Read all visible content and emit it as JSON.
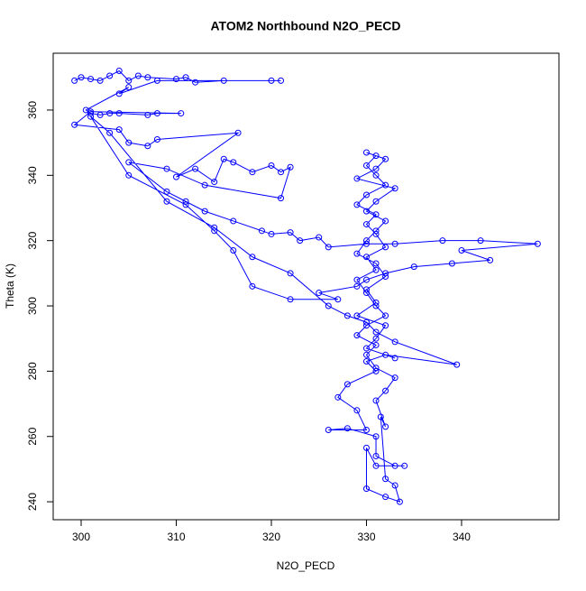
{
  "chart_data": {
    "type": "scatter",
    "title": "ATOM2 Northbound N2O_PECD",
    "x_label": "N2O_PECD",
    "y_label": "Theta (K)",
    "color": "#0000ff",
    "xlim": [
      297.06,
      350.24
    ],
    "ylim": [
      234.5,
      377.4
    ],
    "xticks": [
      300,
      310,
      320,
      330,
      340
    ],
    "yticks": [
      240,
      260,
      280,
      300,
      320,
      340,
      360
    ],
    "x": [
      299.3,
      300,
      301,
      302,
      303,
      304,
      305,
      306,
      307,
      310,
      311,
      312,
      315,
      320,
      321,
      308,
      304,
      305,
      300.5,
      301,
      302,
      303,
      304,
      307,
      308,
      310.5,
      301,
      299.3,
      304,
      305,
      307,
      308,
      316.5,
      310,
      312,
      314,
      315,
      316,
      318,
      320,
      321,
      322,
      321,
      313,
      309,
      305,
      309,
      311,
      313,
      316,
      319,
      320,
      322,
      323,
      325,
      326,
      330,
      333,
      338,
      342,
      348,
      340,
      343,
      339,
      335,
      332,
      330,
      329,
      325,
      327,
      322,
      318,
      316,
      314,
      311,
      305,
      301,
      303,
      309,
      314,
      318,
      322,
      326,
      328,
      330,
      331,
      333,
      339.5,
      332,
      330,
      331,
      328,
      327,
      329,
      330,
      326,
      328,
      331,
      331,
      333,
      334,
      331,
      330,
      330,
      332,
      333.5,
      333,
      332,
      331.5,
      332,
      331,
      332,
      333,
      331,
      330,
      331,
      329,
      330,
      332,
      331,
      330,
      329,
      331,
      330,
      332,
      331,
      330,
      331,
      329,
      330,
      332,
      331,
      330,
      331,
      330,
      332,
      331,
      329,
      333,
      331,
      330,
      332,
      331,
      330,
      329,
      331,
      332,
      330,
      331,
      329,
      332,
      331,
      330,
      333
    ],
    "values": [
      369,
      370,
      369.5,
      369,
      370.5,
      372,
      369,
      370.5,
      370,
      369.5,
      370,
      368.5,
      369,
      369,
      369,
      369,
      365,
      367,
      360,
      359,
      358.5,
      359,
      359,
      358.5,
      359,
      359,
      359.5,
      355.5,
      354,
      350,
      349,
      351,
      353,
      339.5,
      342,
      338,
      345,
      344,
      341,
      343,
      341,
      342.5,
      333,
      337,
      342,
      344,
      335,
      332,
      329,
      326,
      323,
      322,
      322.5,
      320,
      321,
      318,
      319,
      319,
      320,
      320,
      319,
      317,
      314,
      313,
      312,
      310,
      308,
      306,
      304,
      302,
      302,
      306,
      317,
      323,
      331,
      340,
      358,
      353,
      332,
      324,
      315,
      310,
      300,
      297,
      295,
      292,
      289,
      282,
      285,
      283,
      280,
      276,
      272,
      268,
      262,
      262,
      262.5,
      260,
      254,
      251,
      251,
      251,
      256.5,
      244,
      241.5,
      240,
      245,
      247,
      266,
      263,
      271,
      274,
      278,
      281,
      285,
      288,
      291,
      294,
      297,
      300,
      304,
      308,
      311,
      315,
      318,
      322,
      325,
      328,
      331,
      334,
      337,
      340,
      343,
      346,
      347,
      345,
      342,
      339,
      336,
      332,
      329,
      326,
      323,
      320,
      316,
      313,
      309,
      305,
      301,
      297,
      294,
      290,
      287,
      284
    ]
  }
}
